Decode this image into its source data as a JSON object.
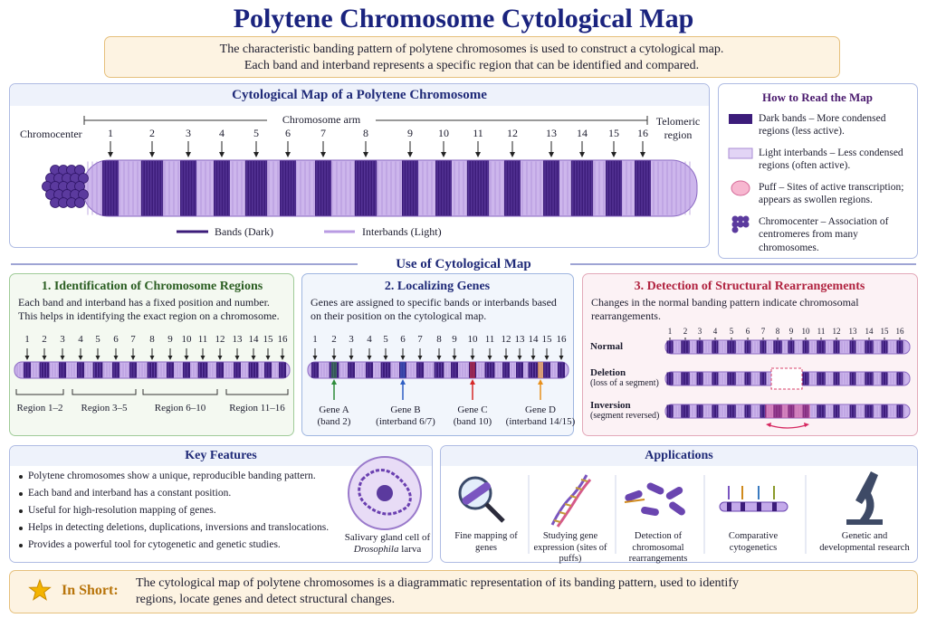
{
  "title": "Polytene Chromosome Cytological Map",
  "intro": [
    "The characteristic banding pattern of polytene chromosomes is used to construct a cytological map.",
    "Each band and interband represents a specific region that can be identified and compared."
  ],
  "map": {
    "title": "Cytological Map of a Polytene Chromosome",
    "arm_label": "Chromosome arm",
    "chromocenter": "Chromocenter",
    "telomeric": "Telomeric region",
    "band_numbers": [
      1,
      2,
      3,
      4,
      5,
      6,
      7,
      8,
      9,
      10,
      11,
      12,
      13,
      14,
      15,
      16
    ],
    "legend": [
      "Bands (Dark)",
      "Interbands (Light)"
    ]
  },
  "how_to_read": {
    "title": "How to Read the Map",
    "items": [
      "Dark bands – More condensed regions (less active).",
      "Light interbands – Less condensed regions (often active).",
      "Puff – Sites of active transcription; appears as swollen regions.",
      "Chromocenter – Association of centromeres from many chromosomes."
    ]
  },
  "use_heading": "Use of Cytological Map",
  "panels": [
    {
      "title": "1. Identification of Chromosome Regions",
      "text": "Each band and interband has a fixed position and number. This helps in identifying the exact region on a chromosome.",
      "regions": [
        "Region 1–2",
        "Region 3–5",
        "Region 6–10",
        "Region 11–16"
      ]
    },
    {
      "title": "2. Localizing Genes",
      "text": "Genes are assigned to specific bands or interbands based on their position on the cytological map.",
      "genes": [
        {
          "name": "Gene A",
          "note": "(band 2)",
          "color": "#2e8b3a"
        },
        {
          "name": "Gene B",
          "note": "(interband 6/7)",
          "color": "#2f5fc4"
        },
        {
          "name": "Gene C",
          "note": "(band 10)",
          "color": "#d62828"
        },
        {
          "name": "Gene D",
          "note": "(interband 14/15)",
          "color": "#e8901c"
        }
      ]
    },
    {
      "title": "3. Detection of Structural Rearrangements",
      "text": "Changes in the normal banding pattern indicate chromosomal rearrangements.",
      "rows": [
        {
          "label": "Normal"
        },
        {
          "label": "Deletion",
          "note": "(loss of a segment)"
        },
        {
          "label": "Inversion",
          "note": "(segment reversed)"
        }
      ]
    }
  ],
  "key_features": {
    "title": "Key Features",
    "items": [
      "Polytene chromosomes show a unique, reproducible banding pattern.",
      "Each band and interband has a constant position.",
      "Useful for high-resolution mapping of genes.",
      "Helps in detecting deletions, duplications, inversions and translocations.",
      "Provides a powerful tool for cytogenetic and genetic studies."
    ],
    "caption": "Salivary gland cell of",
    "caption_em": "Drosophila",
    "caption_end": "larva"
  },
  "applications": {
    "title": "Applications",
    "items": [
      "Fine mapping of genes",
      "Studying gene expression (sites of puffs)",
      "Detection of chromosomal rearrangements",
      "Comparative cytogenetics",
      "Genetic and developmental research"
    ]
  },
  "in_short": {
    "label": "In Short:",
    "text": "The cytological map of polytene chromosomes is a diagrammatic representation of its banding pattern, used to identify regions, locate genes and detect structural changes."
  }
}
